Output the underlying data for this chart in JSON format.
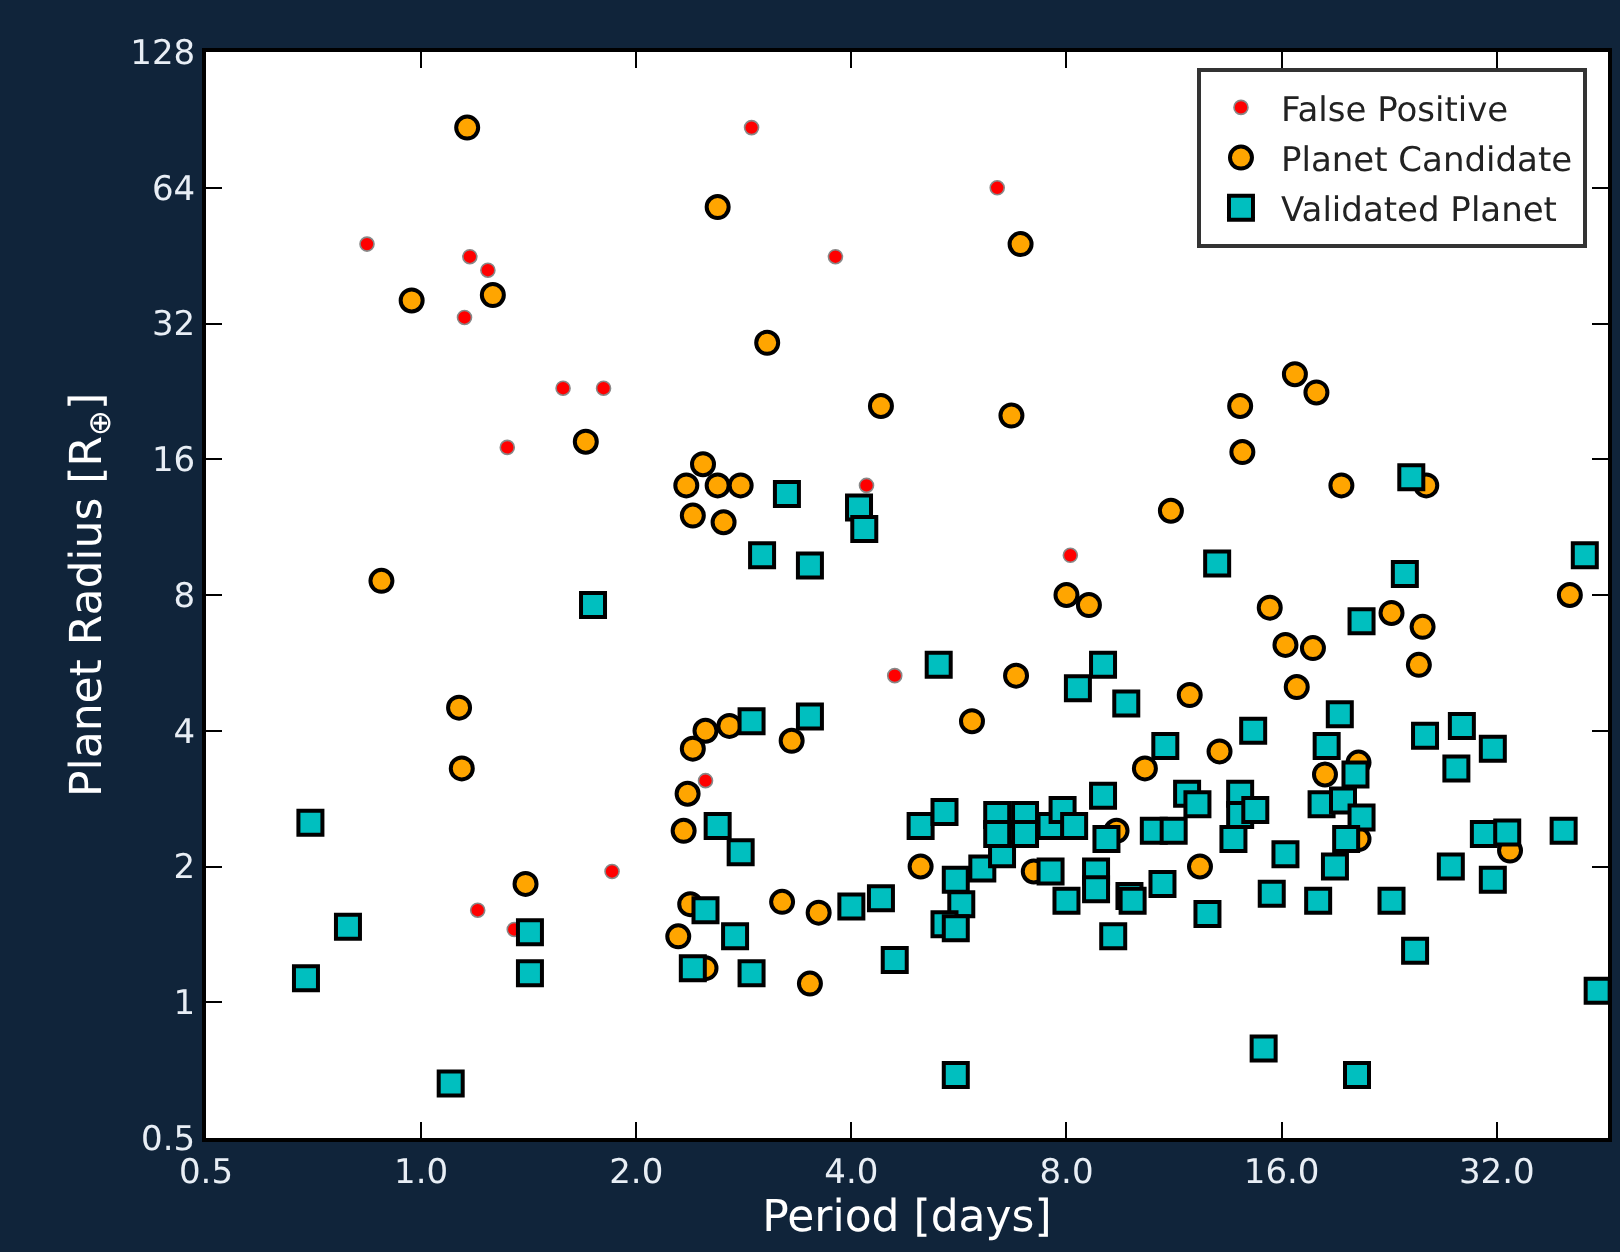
{
  "chart_data": {
    "type": "scatter",
    "xlabel": "Period [days]",
    "ylabel": "Planet Radius [R$_{⊕}$]",
    "log": "xy",
    "legend": "top right",
    "xlim": [
      0.5,
      45.8
    ],
    "ylim": [
      0.5,
      128
    ],
    "xticks": [
      {
        "value": 0.5,
        "label": "0.5"
      },
      {
        "value": 1,
        "label": "1.0"
      },
      {
        "value": 2,
        "label": "2.0"
      },
      {
        "value": 4,
        "label": "4.0"
      },
      {
        "value": 8,
        "label": "8.0"
      },
      {
        "value": 16,
        "label": "16.0"
      },
      {
        "value": 32,
        "label": "32.0"
      }
    ],
    "yticks": [
      0.5,
      1,
      2,
      4,
      8,
      16,
      32,
      64,
      128
    ],
    "series": [
      {
        "name": "False Positive",
        "color": "#ff0000",
        "marker": "circle",
        "x": [
          0.84,
          1.15,
          1.17,
          1.24,
          1.32,
          1.58,
          1.8,
          1.2,
          1.35,
          1.85,
          2.9,
          3.8,
          6.4,
          4.2,
          8.1,
          4.6,
          2.5
        ],
        "values": [
          48,
          33,
          45,
          42,
          17,
          23,
          23,
          1.6,
          1.45,
          1.95,
          87,
          45,
          64,
          14,
          9.8,
          5.3,
          3.1
        ]
      },
      {
        "name": "Planet Candidate",
        "color": "#ffa500",
        "marker": "circle",
        "x": [
          1.16,
          0.97,
          1.26,
          1.7,
          0.88,
          2.6,
          6.9,
          3.05,
          4.4,
          6.7,
          2.48,
          2.35,
          2.6,
          2.8,
          2.4,
          2.65,
          16.7,
          17.9,
          14,
          14.1,
          19.4,
          25.5,
          11.2,
          15.4,
          16.2,
          17.7,
          16.8,
          11.9,
          13.1,
          10.3,
          22.8,
          25.2,
          24.9,
          40.5,
          18.4,
          20.5,
          12.3,
          33.4,
          20.5,
          8.0,
          8.6,
          6.8,
          5.9,
          2.5,
          2.4,
          2.7,
          3.3,
          2.36,
          2.33,
          2.38,
          2.29,
          2.5,
          3.2,
          3.6,
          3.5,
          5.0,
          7.2,
          9.4,
          1.13,
          1.14,
          1.4
        ],
        "values": [
          87,
          36,
          37,
          17.5,
          8.6,
          58,
          48,
          29,
          21,
          20,
          15.6,
          14,
          14,
          14,
          12,
          11.6,
          24.7,
          22.5,
          21,
          16.6,
          14,
          14,
          12.3,
          7.5,
          6.2,
          6.1,
          5.0,
          4.8,
          3.6,
          3.3,
          7.3,
          6.8,
          5.6,
          8.0,
          3.2,
          3.4,
          2.0,
          2.17,
          2.3,
          8.0,
          7.6,
          5.3,
          4.2,
          4.0,
          3.65,
          4.1,
          3.8,
          2.9,
          2.4,
          1.65,
          1.4,
          1.19,
          1.67,
          1.58,
          1.1,
          2.0,
          1.95,
          2.4,
          4.5,
          3.3,
          1.83
        ]
      },
      {
        "name": "Validated Planet",
        "color": "#00bfbf",
        "marker": "square",
        "x": [
          1.74,
          0.7,
          0.79,
          0.69,
          1.1,
          1.42,
          1.42,
          3.25,
          4.1,
          4.17,
          3.0,
          3.5,
          5.3,
          9.0,
          8.3,
          9.7,
          2.9,
          3.5,
          2.6,
          2.8,
          2.5,
          2.75,
          2.4,
          2.9,
          4.0,
          4.4,
          4.6,
          5.6,
          5.0,
          5.4,
          5.6,
          5.7,
          5.4,
          5.6,
          6.1,
          6.5,
          6.4,
          6.4,
          7.0,
          7.0,
          7.6,
          7.9,
          8.2,
          9.0,
          9.1,
          7.6,
          8.8,
          8.0,
          8.8,
          9.3,
          9.8,
          11.0,
          11.8,
          12.2,
          10.6,
          11.3,
          10.9,
          9.9,
          12.6,
          14.6,
          14.0,
          14.0,
          14.7,
          13.7,
          16.2,
          15.5,
          15.1,
          20.4,
          19.3,
          18.5,
          20.3,
          18.2,
          19.5,
          20.7,
          19.7,
          19.0,
          18.0,
          22.8,
          24.6,
          25.4,
          28.6,
          28.1,
          31.6,
          27.6,
          31.6,
          30.7,
          33.1,
          39.7,
          44.3,
          42.5,
          24.3,
          13.0,
          23.8,
          20.7
        ],
        "values": [
          7.6,
          2.5,
          1.47,
          1.13,
          0.66,
          1.43,
          1.16,
          13.4,
          12.5,
          11.2,
          9.8,
          9.3,
          5.6,
          5.6,
          4.97,
          4.6,
          4.2,
          4.3,
          2.46,
          2.15,
          1.6,
          1.4,
          1.19,
          1.16,
          1.63,
          1.7,
          1.24,
          0.69,
          2.46,
          2.64,
          1.87,
          1.65,
          1.49,
          1.46,
          1.98,
          2.13,
          2.6,
          2.36,
          2.6,
          2.36,
          2.46,
          2.67,
          2.46,
          2.87,
          2.3,
          1.95,
          1.95,
          1.68,
          1.78,
          1.4,
          1.72,
          3.7,
          2.9,
          2.75,
          2.4,
          2.4,
          1.83,
          1.68,
          1.57,
          4.0,
          2.9,
          2.6,
          2.67,
          2.3,
          2.13,
          1.74,
          0.79,
          0.69,
          4.35,
          3.7,
          3.2,
          2.75,
          2.8,
          2.57,
          2.3,
          2.0,
          1.68,
          1.68,
          1.3,
          3.9,
          4.1,
          3.3,
          3.65,
          2.0,
          1.87,
          2.36,
          2.38,
          2.4,
          1.06,
          9.8,
          14.6,
          9.4,
          8.9,
          7.0
        ]
      }
    ]
  }
}
